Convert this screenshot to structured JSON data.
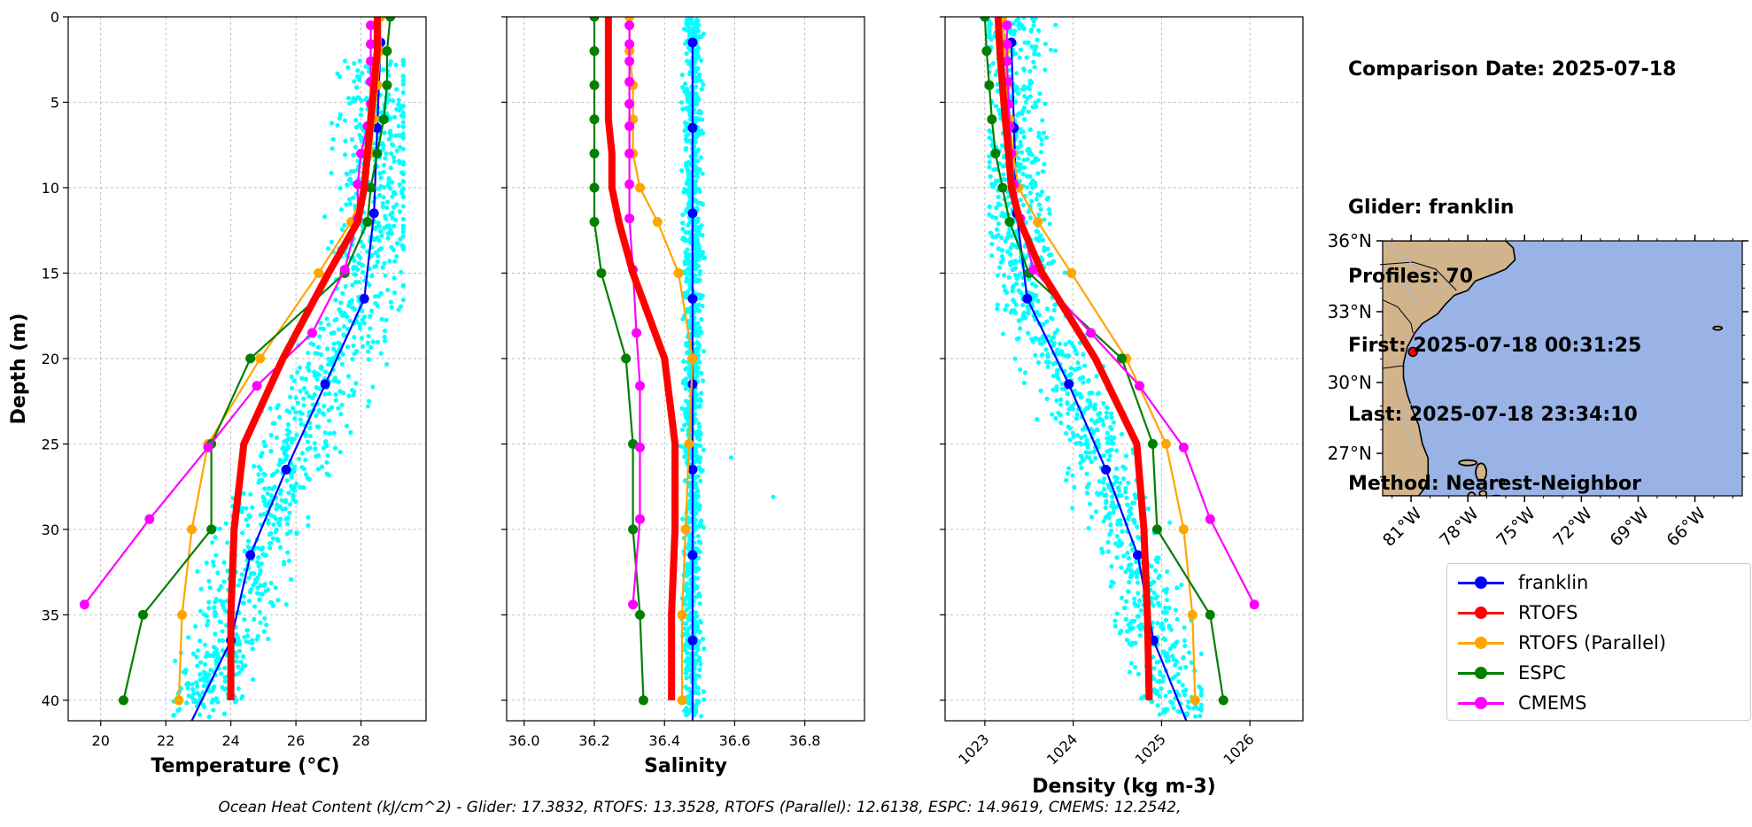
{
  "info": {
    "comparison_date": "Comparison Date: 2025-07-18",
    "glider": "Glider: franklin",
    "profiles": "Profiles: 70",
    "first": "First: 2025-07-18 00:31:25",
    "last": "Last: 2025-07-18 23:34:10",
    "method": "Method: Nearest-Neighbor"
  },
  "footer": "Ocean Heat Content (kJ/cm^2) - Glider: 17.3832,  RTOFS: 13.3528,  RTOFS (Parallel): 12.6138,  ESPC: 14.9619,  CMEMS: 12.2542,",
  "colors": {
    "franklin": "#0000ff",
    "RTOFS": "#ff0000",
    "RTOFS (Parallel)": "#ffa500",
    "ESPC": "#008000",
    "CMEMS": "#ff00ff",
    "glider_scatter": "#00ffff",
    "land": "#d2b48c",
    "ocean": "#99b3e6"
  },
  "legend": [
    {
      "label": "franklin",
      "color": "#0000ff"
    },
    {
      "label": "RTOFS",
      "color": "#ff0000"
    },
    {
      "label": "RTOFS (Parallel)",
      "color": "#ffa500"
    },
    {
      "label": "ESPC",
      "color": "#008000"
    },
    {
      "label": "CMEMS",
      "color": "#ff00ff"
    }
  ],
  "chart_data": [
    {
      "type": "line",
      "xlabel": "Temperature (°C)",
      "ylabel": "Depth (m)",
      "xlim": [
        19,
        30
      ],
      "ylim": [
        41.2,
        0
      ],
      "xticks": [
        "20",
        "22",
        "24",
        "26",
        "28"
      ],
      "yticks": [
        "0",
        "5",
        "10",
        "15",
        "20",
        "25",
        "30",
        "35",
        "40"
      ],
      "grid": true,
      "series": [
        {
          "name": "franklin",
          "depth": [
            1.5,
            6.5,
            11.5,
            16.5,
            21.5,
            26.5,
            31.5,
            36.5,
            41.2
          ],
          "values": [
            28.6,
            28.5,
            28.4,
            28.1,
            26.9,
            25.7,
            24.6,
            24.0,
            22.8
          ]
        },
        {
          "name": "RTOFS",
          "depth": [
            0,
            2,
            4,
            6,
            8,
            10,
            12,
            15,
            20,
            25,
            30,
            35,
            40
          ],
          "values": [
            28.5,
            28.5,
            28.4,
            28.3,
            28.2,
            28.1,
            27.9,
            27.0,
            25.6,
            24.4,
            24.1,
            24.0,
            24.0
          ]
        },
        {
          "name": "RTOFS (Parallel)",
          "depth": [
            0,
            2,
            4,
            6,
            8,
            10,
            12,
            15,
            20,
            25,
            30,
            35,
            40
          ],
          "values": [
            28.6,
            28.6,
            28.5,
            28.4,
            28.3,
            28.1,
            27.7,
            26.7,
            24.9,
            23.3,
            22.8,
            22.5,
            22.4
          ],
          "markers": true
        },
        {
          "name": "ESPC",
          "depth": [
            0,
            2,
            4,
            6,
            8,
            10,
            12,
            15,
            20,
            25,
            30,
            35,
            40
          ],
          "values": [
            28.9,
            28.8,
            28.8,
            28.7,
            28.5,
            28.3,
            28.2,
            27.5,
            24.6,
            23.4,
            23.4,
            21.3,
            20.7
          ],
          "markers": true
        },
        {
          "name": "CMEMS",
          "depth": [
            0.5,
            1.6,
            2.6,
            3.8,
            5.1,
            6.4,
            8.0,
            9.8,
            11.8,
            14.8,
            18.5,
            21.6,
            25.2,
            29.4,
            34.4
          ],
          "values": [
            28.3,
            28.3,
            28.3,
            28.3,
            28.3,
            28.2,
            28.0,
            27.9,
            27.9,
            27.5,
            26.5,
            24.8,
            23.3,
            21.5,
            19.5
          ],
          "markers": true
        }
      ],
      "scatter": {
        "name": "franklin",
        "xrange": [
          21.5,
          29.3
        ],
        "depth_range": [
          2.5,
          41.0
        ]
      }
    },
    {
      "type": "line",
      "xlabel": "Salinity",
      "xlim": [
        35.95,
        36.97
      ],
      "ylim": [
        41.2,
        0
      ],
      "xticks": [
        "36.0",
        "36.2",
        "36.4",
        "36.6",
        "36.8"
      ],
      "grid": true,
      "series": [
        {
          "name": "franklin",
          "depth": [
            1.5,
            6.5,
            11.5,
            16.5,
            21.5,
            26.5,
            31.5,
            36.5,
            41.2
          ],
          "values": [
            36.48,
            36.48,
            36.48,
            36.48,
            36.48,
            36.48,
            36.48,
            36.48,
            36.48
          ]
        },
        {
          "name": "RTOFS",
          "depth": [
            0,
            2,
            4,
            6,
            8,
            10,
            12,
            15,
            20,
            25,
            30,
            35,
            40
          ],
          "values": [
            36.24,
            36.24,
            36.24,
            36.24,
            36.25,
            36.25,
            36.27,
            36.31,
            36.4,
            36.43,
            36.43,
            36.42,
            36.42
          ]
        },
        {
          "name": "RTOFS (Parallel)",
          "depth": [
            0,
            2,
            4,
            6,
            8,
            10,
            12,
            15,
            20,
            25,
            30,
            35,
            40
          ],
          "values": [
            36.3,
            36.3,
            36.31,
            36.31,
            36.31,
            36.33,
            36.38,
            36.44,
            36.48,
            36.47,
            36.46,
            36.45,
            36.45
          ],
          "markers": true
        },
        {
          "name": "ESPC",
          "depth": [
            0,
            2,
            4,
            6,
            8,
            10,
            12,
            15,
            20,
            25,
            30,
            35,
            40
          ],
          "values": [
            36.2,
            36.2,
            36.2,
            36.2,
            36.2,
            36.2,
            36.2,
            36.22,
            36.29,
            36.31,
            36.31,
            36.33,
            36.34
          ],
          "markers": true
        },
        {
          "name": "CMEMS",
          "depth": [
            0.5,
            1.6,
            2.6,
            3.8,
            5.1,
            6.4,
            8.0,
            9.8,
            11.8,
            14.8,
            18.5,
            21.6,
            25.2,
            29.4,
            34.4
          ],
          "values": [
            36.3,
            36.3,
            36.3,
            36.3,
            36.3,
            36.3,
            36.3,
            36.3,
            36.3,
            36.31,
            36.32,
            36.33,
            36.33,
            36.33,
            36.31
          ],
          "markers": true
        }
      ],
      "scatter": {
        "name": "franklin",
        "xrange": [
          36.43,
          36.55
        ],
        "depth_range": [
          0,
          41.0
        ]
      }
    },
    {
      "type": "line",
      "xlabel": "Density (kg m-3)",
      "xlim": [
        1022.55,
        1026.6
      ],
      "ylim": [
        41.2,
        0
      ],
      "xticks": [
        "1023",
        "1024",
        "1025",
        "1026"
      ],
      "grid": true,
      "series": [
        {
          "name": "franklin",
          "depth": [
            1.5,
            6.5,
            11.5,
            16.5,
            21.5,
            26.5,
            31.5,
            36.5,
            41.2
          ],
          "values": [
            1023.3,
            1023.33,
            1023.36,
            1023.48,
            1023.95,
            1024.37,
            1024.73,
            1024.91,
            1025.28
          ]
        },
        {
          "name": "RTOFS",
          "depth": [
            0,
            2,
            4,
            6,
            8,
            10,
            12,
            15,
            20,
            25,
            30,
            35,
            40
          ],
          "values": [
            1023.15,
            1023.17,
            1023.2,
            1023.23,
            1023.27,
            1023.3,
            1023.4,
            1023.65,
            1024.25,
            1024.72,
            1024.8,
            1024.84,
            1024.86
          ]
        },
        {
          "name": "RTOFS (Parallel)",
          "depth": [
            0,
            2,
            4,
            6,
            8,
            10,
            12,
            15,
            20,
            25,
            30,
            35,
            40
          ],
          "values": [
            1023.2,
            1023.23,
            1023.25,
            1023.28,
            1023.32,
            1023.38,
            1023.6,
            1023.98,
            1024.6,
            1025.05,
            1025.25,
            1025.35,
            1025.38
          ],
          "markers": true
        },
        {
          "name": "ESPC",
          "depth": [
            0,
            2,
            4,
            6,
            8,
            10,
            12,
            15,
            20,
            25,
            30,
            35,
            40
          ],
          "values": [
            1023.0,
            1023.02,
            1023.05,
            1023.08,
            1023.12,
            1023.2,
            1023.28,
            1023.5,
            1024.55,
            1024.9,
            1024.95,
            1025.55,
            1025.7
          ],
          "markers": true
        },
        {
          "name": "CMEMS",
          "depth": [
            0.5,
            1.6,
            2.6,
            3.8,
            5.1,
            6.4,
            8.0,
            9.8,
            11.8,
            14.8,
            18.5,
            21.6,
            25.2,
            29.4,
            34.4
          ],
          "values": [
            1023.25,
            1023.25,
            1023.25,
            1023.26,
            1023.27,
            1023.28,
            1023.3,
            1023.33,
            1023.4,
            1023.55,
            1024.2,
            1024.75,
            1025.25,
            1025.55,
            1026.05
          ],
          "markers": true
        }
      ],
      "scatter": {
        "name": "franklin",
        "xrange": [
          1023.05,
          1025.45
        ],
        "depth_range": [
          0,
          41.0
        ]
      }
    },
    {
      "type": "map",
      "lon_range": [
        -82.5,
        -63.5
      ],
      "lat_range": [
        25.2,
        36.0
      ],
      "xticks": [
        "81°W",
        "78°W",
        "75°W",
        "72°W",
        "69°W",
        "66°W"
      ],
      "yticks": [
        "27°N",
        "30°N",
        "33°N",
        "36°N"
      ],
      "glider_location": {
        "lon": -80.9,
        "lat": 31.3
      }
    }
  ]
}
